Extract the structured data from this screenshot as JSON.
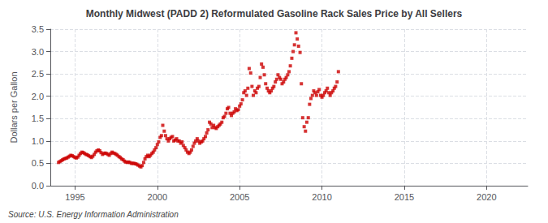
{
  "chart_data": {
    "type": "scatter",
    "title": "Monthly Midwest (PADD 2) Reformulated Gasoline Rack Sales Price by All Sellers",
    "ylabel": "Dollars per Gallon",
    "annotation": "Source: U.S. Energy Information Administration",
    "color": "#cc0000",
    "marker": "square",
    "grid": true,
    "xlim": [
      1993.5,
      2022.5
    ],
    "ylim": [
      0.0,
      3.5
    ],
    "xticks": [
      1995,
      2000,
      2005,
      2010,
      2015,
      2020
    ],
    "yticks": [
      {
        "value": 0,
        "label": "0.0"
      },
      0.5,
      {
        "value": 1,
        "label": "1.0"
      },
      1.5,
      {
        "value": 2,
        "label": "2.0"
      },
      2.5,
      {
        "value": 3,
        "label": "3.0"
      },
      3.5
    ],
    "x": [
      1994.0,
      1994.08,
      1994.17,
      1994.25,
      1994.33,
      1994.42,
      1994.5,
      1994.58,
      1994.67,
      1994.75,
      1994.83,
      1994.92,
      1995.0,
      1995.08,
      1995.17,
      1995.25,
      1995.33,
      1995.42,
      1995.5,
      1995.58,
      1995.67,
      1995.75,
      1995.83,
      1995.92,
      1996.0,
      1996.08,
      1996.17,
      1996.25,
      1996.33,
      1996.42,
      1996.5,
      1996.58,
      1996.67,
      1996.75,
      1996.83,
      1996.92,
      1997.0,
      1997.08,
      1997.17,
      1997.25,
      1997.33,
      1997.42,
      1997.5,
      1997.58,
      1997.67,
      1997.75,
      1997.83,
      1997.92,
      1998.0,
      1998.08,
      1998.17,
      1998.25,
      1998.33,
      1998.42,
      1998.5,
      1998.58,
      1998.67,
      1998.75,
      1998.83,
      1998.92,
      1999.0,
      1999.08,
      1999.17,
      1999.25,
      1999.33,
      1999.42,
      1999.5,
      1999.58,
      1999.67,
      1999.75,
      1999.83,
      1999.92,
      2000.0,
      2000.08,
      2000.17,
      2000.25,
      2000.33,
      2000.42,
      2000.5,
      2000.58,
      2000.67,
      2000.75,
      2000.83,
      2000.92,
      2001.0,
      2001.08,
      2001.17,
      2001.25,
      2001.33,
      2001.42,
      2001.5,
      2001.58,
      2001.67,
      2001.75,
      2001.83,
      2001.92,
      2002.0,
      2002.08,
      2002.17,
      2002.25,
      2002.33,
      2002.42,
      2002.5,
      2002.58,
      2002.67,
      2002.75,
      2002.83,
      2002.92,
      2003.0,
      2003.08,
      2003.17,
      2003.25,
      2003.33,
      2003.42,
      2003.5,
      2003.58,
      2003.67,
      2003.75,
      2003.83,
      2003.92,
      2004.0,
      2004.08,
      2004.17,
      2004.25,
      2004.33,
      2004.42,
      2004.5,
      2004.58,
      2004.67,
      2004.75,
      2004.83,
      2004.92,
      2005.0,
      2005.08,
      2005.17,
      2005.25,
      2005.33,
      2005.42,
      2005.5,
      2005.58,
      2005.67,
      2005.75,
      2005.83,
      2005.92,
      2006.0,
      2006.08,
      2006.17,
      2006.25,
      2006.33,
      2006.42,
      2006.5,
      2006.58,
      2006.67,
      2006.75,
      2006.83,
      2006.92,
      2007.0,
      2007.08,
      2007.17,
      2007.25,
      2007.33,
      2007.42,
      2007.5,
      2007.58,
      2007.67,
      2007.75,
      2007.83,
      2007.92,
      2008.0,
      2008.08,
      2008.17,
      2008.25,
      2008.33,
      2008.42,
      2008.5,
      2008.58,
      2008.67,
      2008.75,
      2008.83,
      2008.92,
      2009.0,
      2009.08,
      2009.17,
      2009.25,
      2009.33,
      2009.42,
      2009.5,
      2009.58,
      2009.67,
      2009.75,
      2009.83,
      2009.92,
      2010.0,
      2010.08,
      2010.17,
      2010.25,
      2010.33,
      2010.42,
      2010.5,
      2010.58,
      2010.67,
      2010.75,
      2010.83,
      2010.92,
      2011.0
    ],
    "values": [
      0.52,
      0.54,
      0.56,
      0.58,
      0.6,
      0.61,
      0.62,
      0.64,
      0.66,
      0.68,
      0.67,
      0.65,
      0.63,
      0.62,
      0.64,
      0.68,
      0.72,
      0.75,
      0.74,
      0.72,
      0.7,
      0.69,
      0.67,
      0.65,
      0.63,
      0.66,
      0.7,
      0.75,
      0.78,
      0.8,
      0.78,
      0.74,
      0.7,
      0.72,
      0.73,
      0.72,
      0.7,
      0.68,
      0.72,
      0.75,
      0.73,
      0.72,
      0.7,
      0.68,
      0.65,
      0.63,
      0.6,
      0.58,
      0.55,
      0.53,
      0.52,
      0.53,
      0.52,
      0.5,
      0.5,
      0.5,
      0.49,
      0.48,
      0.46,
      0.44,
      0.42,
      0.45,
      0.52,
      0.6,
      0.65,
      0.68,
      0.65,
      0.68,
      0.72,
      0.75,
      0.8,
      0.85,
      0.92,
      0.98,
      1.08,
      1.12,
      1.35,
      1.22,
      1.12,
      1.05,
      1.0,
      1.05,
      1.08,
      1.1,
      1.0,
      1.02,
      1.05,
      1.0,
      1.0,
      0.95,
      0.98,
      0.9,
      0.85,
      0.8,
      0.75,
      0.72,
      0.75,
      0.8,
      0.88,
      0.95,
      1.0,
      1.05,
      1.0,
      0.95,
      0.98,
      1.0,
      1.05,
      1.1,
      1.18,
      1.25,
      1.42,
      1.38,
      1.3,
      1.35,
      1.3,
      1.28,
      1.32,
      1.35,
      1.38,
      1.42,
      1.52,
      1.55,
      1.62,
      1.72,
      1.75,
      1.62,
      1.57,
      1.62,
      1.65,
      1.72,
      1.68,
      1.7,
      1.78,
      1.83,
      1.92,
      2.08,
      2.12,
      2.02,
      2.18,
      2.62,
      2.52,
      2.22,
      2.02,
      2.12,
      2.08,
      2.18,
      2.22,
      2.42,
      2.72,
      2.65,
      2.48,
      2.28,
      2.18,
      2.12,
      2.08,
      2.12,
      2.18,
      2.22,
      2.32,
      2.38,
      2.48,
      2.42,
      2.38,
      2.28,
      2.32,
      2.38,
      2.42,
      2.48,
      2.55,
      2.68,
      2.85,
      3.0,
      3.15,
      3.42,
      3.28,
      3.12,
      2.98,
      2.28,
      1.52,
      1.32,
      1.22,
      1.42,
      1.52,
      1.82,
      1.95,
      2.02,
      2.12,
      2.08,
      2.02,
      2.1,
      2.15,
      2.02,
      1.98,
      2.02,
      2.08,
      2.12,
      2.18,
      2.08,
      2.02,
      2.08,
      2.12,
      2.18,
      2.22,
      2.32,
      2.55
    ]
  }
}
